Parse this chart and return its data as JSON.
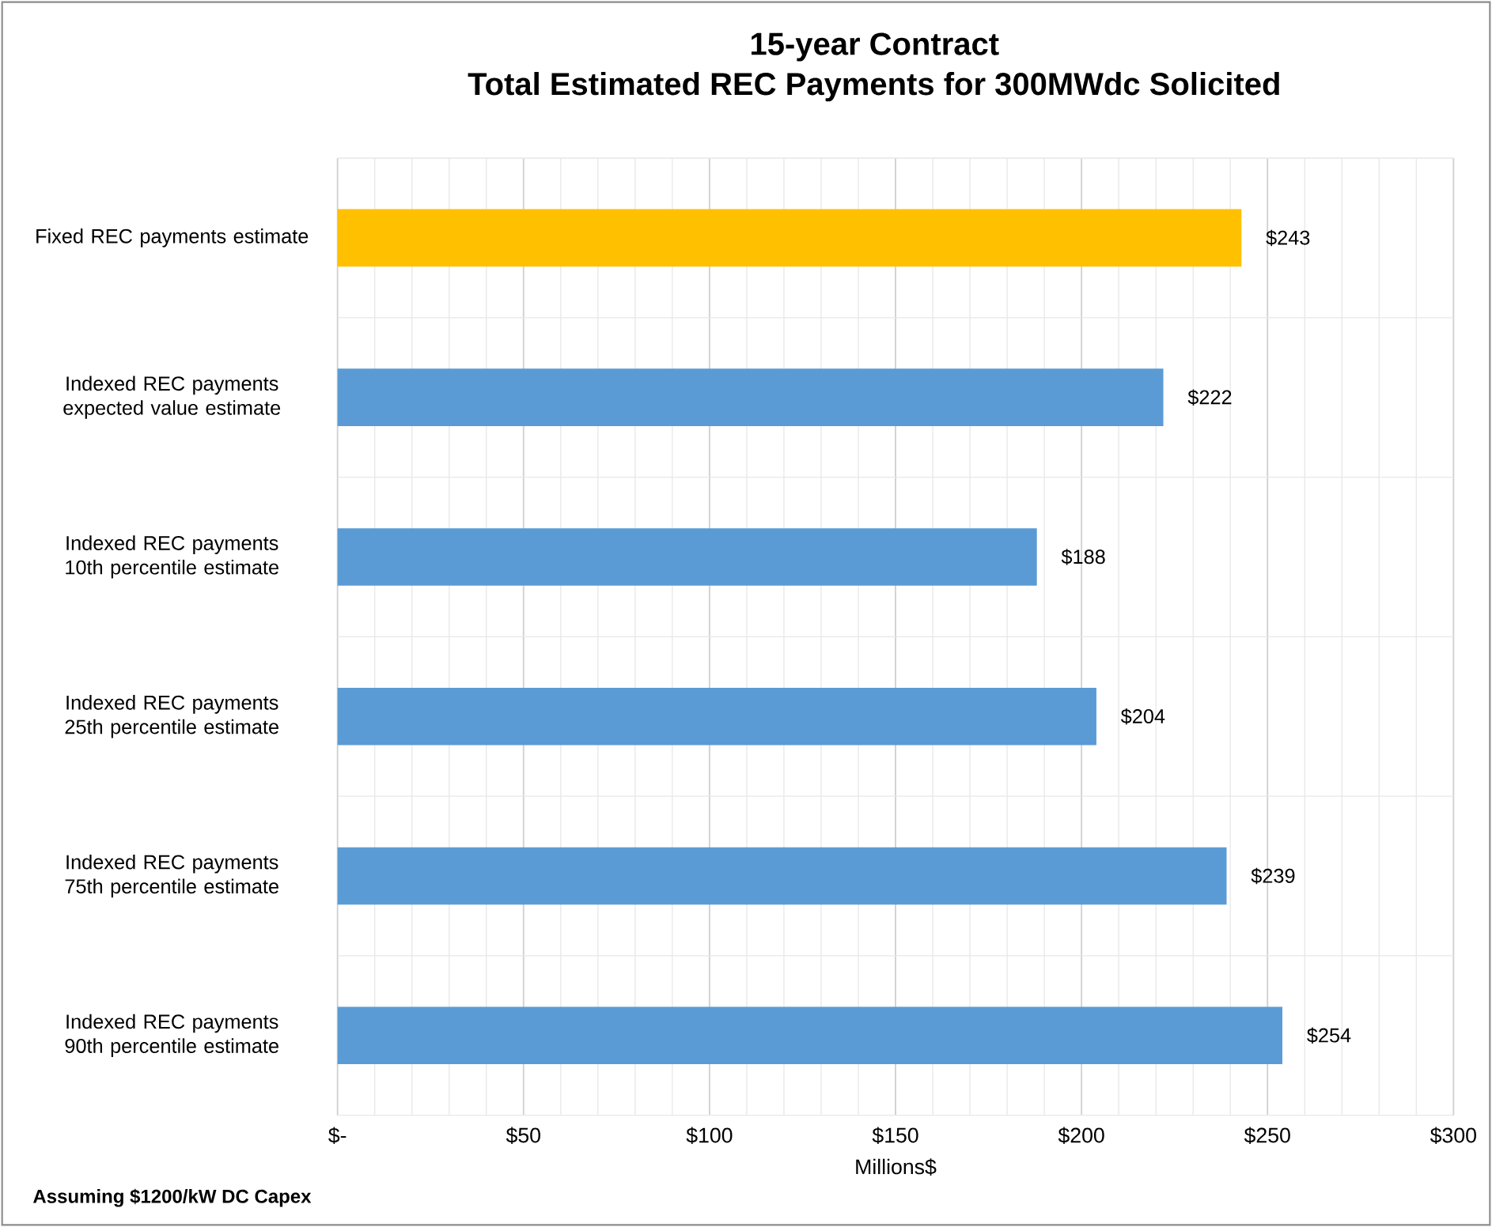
{
  "chart_data": {
    "type": "bar",
    "orientation": "horizontal",
    "title": "15-year Contract",
    "subtitle": "Total Estimated REC Payments for 300MWdc Solicited",
    "xlabel": "Millions$",
    "categories": [
      "Fixed REC payments estimate",
      "Indexed REC payments expected value estimate",
      "Indexed REC payments 10th percentile estimate",
      "Indexed REC payments 25th percentile estimate",
      "Indexed REC payments 75th percentile estimate",
      "Indexed REC payments 90th percentile estimate"
    ],
    "values": [
      243,
      222,
      188,
      204,
      239,
      254
    ],
    "colors": [
      "#ffc000",
      "#5b9bd5",
      "#5b9bd5",
      "#5b9bd5",
      "#5b9bd5",
      "#5b9bd5"
    ],
    "value_labels": [
      "$243",
      "$222",
      "$188",
      "$204",
      "$239",
      "$254"
    ],
    "xlim": [
      0,
      300
    ],
    "xticks": [
      {
        "value": 0,
        "label": "$-"
      },
      {
        "value": 50,
        "label": "$50"
      },
      {
        "value": 100,
        "label": "$100"
      },
      {
        "value": 150,
        "label": "$150"
      },
      {
        "value": 200,
        "label": "$200"
      },
      {
        "value": 250,
        "label": "$250"
      },
      {
        "value": 300,
        "label": "$300"
      }
    ],
    "grid": true,
    "annotations": [
      "Assuming $1200/kW DC Capex"
    ]
  }
}
